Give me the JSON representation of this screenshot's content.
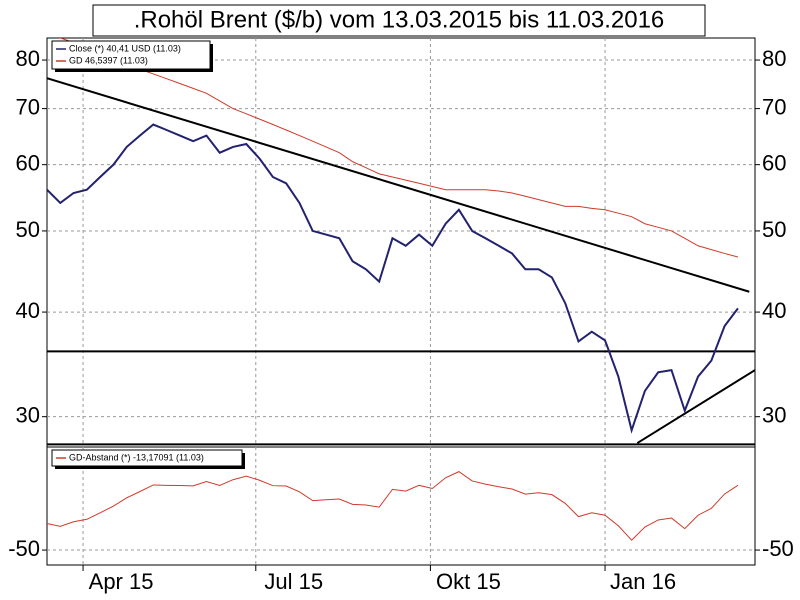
{
  "chart_data": [
    {
      "type": "line",
      "title": ".Rohöl Brent ($/b) vom 13.03.2015 bis 11.03.2016",
      "log_scale": true,
      "grid": true,
      "x": [
        0,
        7,
        14,
        21,
        28,
        35,
        42,
        49,
        56,
        63,
        70,
        77,
        84,
        91,
        98,
        105,
        112,
        119,
        126,
        133,
        140,
        147,
        154,
        161,
        168,
        175,
        182,
        189,
        196,
        203,
        210,
        217,
        224,
        231,
        238,
        245,
        252,
        259,
        266,
        273,
        280,
        287,
        294,
        301,
        308,
        315,
        322,
        329,
        336,
        343,
        350,
        357,
        364
      ],
      "xlim": [
        0,
        373
      ],
      "ylim": [
        27.6,
        85
      ],
      "yticks": [
        30,
        40,
        50,
        60,
        70,
        80
      ],
      "series": [
        {
          "name": "Close (*) 40,41 USD (11.03)",
          "color": "#22226e",
          "values": [
            56,
            54,
            55.5,
            56,
            58,
            60,
            63,
            65,
            67,
            66,
            65,
            64,
            65,
            62,
            63,
            63.5,
            61,
            58,
            57,
            54,
            50,
            49.5,
            49,
            46,
            45,
            43.5,
            49,
            48,
            49.5,
            48,
            51,
            53,
            50,
            49,
            48,
            47,
            45,
            45,
            44,
            41,
            36.9,
            37.9,
            37,
            33.5,
            28.9,
            32.2,
            33.9,
            34.1,
            30.5,
            33.5,
            35,
            38.5,
            40.41
          ]
        },
        {
          "name": "GD 46,5397 (11.03)",
          "color": "#d03a2a",
          "values": [
            86,
            85,
            84,
            83,
            81.5,
            80,
            79,
            78,
            77,
            76,
            75,
            74,
            73,
            71.5,
            70,
            69,
            68,
            67,
            66,
            65,
            64,
            63,
            62,
            60.5,
            59.5,
            58.5,
            58,
            57.5,
            57,
            56.5,
            56,
            56,
            56,
            56,
            55.8,
            55.5,
            55,
            54.5,
            54,
            53.5,
            53.5,
            53.2,
            53,
            52.5,
            52,
            51,
            50.5,
            50,
            49,
            48,
            47.5,
            47,
            46.54
          ]
        }
      ],
      "trendlines": [
        {
          "color": "#000000",
          "x": [
            0,
            370
          ],
          "y": [
            76.1,
            42.3
          ]
        },
        {
          "color": "#000000",
          "x": [
            0,
            373
          ],
          "y": [
            35.9,
            35.9
          ]
        },
        {
          "color": "#000000",
          "x": [
            0,
            373
          ],
          "y": [
            27.8,
            27.8
          ]
        },
        {
          "color": "#000000",
          "x": [
            311,
            373
          ],
          "y": [
            27.9,
            34.1
          ]
        }
      ]
    },
    {
      "type": "line",
      "grid": true,
      "x": [
        0,
        7,
        14,
        21,
        28,
        35,
        42,
        49,
        56,
        63,
        70,
        77,
        84,
        91,
        98,
        105,
        112,
        119,
        126,
        133,
        140,
        147,
        154,
        161,
        168,
        175,
        182,
        189,
        196,
        203,
        210,
        217,
        224,
        231,
        238,
        245,
        252,
        259,
        266,
        273,
        280,
        287,
        294,
        301,
        308,
        315,
        322,
        329,
        336,
        343,
        350,
        357,
        364
      ],
      "xlim": [
        0,
        373
      ],
      "ylim": [
        -58.5,
        8.6
      ],
      "yticks": [
        -50
      ],
      "xticks": [
        {
          "value": 19,
          "label": "Apr 15"
        },
        {
          "value": 110,
          "label": "Jul 15"
        },
        {
          "value": 202,
          "label": "Okt 15"
        },
        {
          "value": 294,
          "label": "Jan 16"
        }
      ],
      "series": [
        {
          "name": "GD-Abstand (*) -13,17091 (11.03)",
          "color": "#d03a2a",
          "values": [
            -34.9,
            -36.5,
            -33.9,
            -32.5,
            -28.8,
            -25,
            -20.3,
            -16.7,
            -13,
            -13.2,
            -13.3,
            -13.5,
            -11,
            -13.3,
            -10,
            -8,
            -10.3,
            -13.4,
            -13.6,
            -16.9,
            -21.9,
            -21.4,
            -21,
            -24,
            -24.4,
            -25.6,
            -15.5,
            -16.5,
            -13.2,
            -15,
            -8.9,
            -5.4,
            -10.7,
            -12.5,
            -14,
            -15.3,
            -18.2,
            -17.4,
            -18.5,
            -23.4,
            -31,
            -28.8,
            -30.2,
            -36.2,
            -44.4,
            -36.9,
            -32.9,
            -31.8,
            -37.8,
            -30.2,
            -26.3,
            -18.1,
            -13.17
          ]
        }
      ]
    }
  ]
}
